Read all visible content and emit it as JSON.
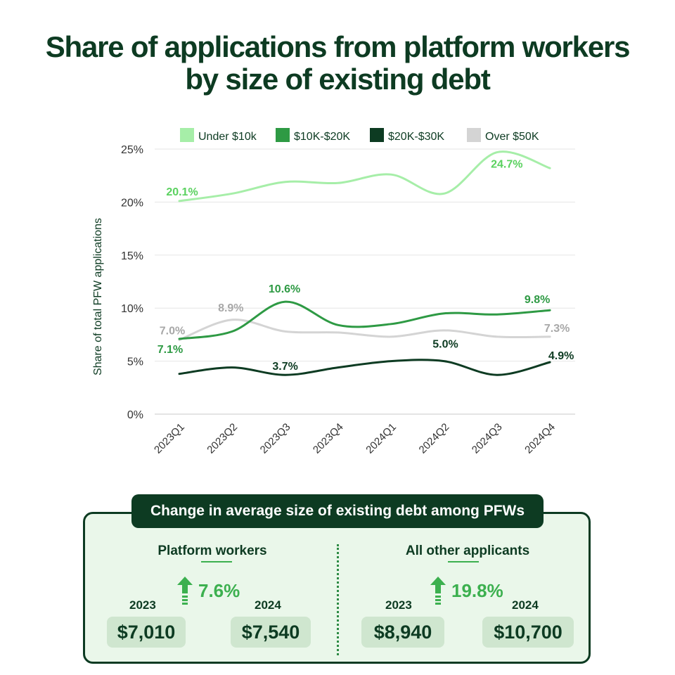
{
  "title_line1": "Share of applications from platform workers",
  "title_line2": "by size of existing debt",
  "chart_data": {
    "type": "line",
    "categories": [
      "2023Q1",
      "2023Q2",
      "2023Q3",
      "2023Q4",
      "2024Q1",
      "2024Q2",
      "2024Q3",
      "2024Q4"
    ],
    "ylabel": "Share of total PFW applications",
    "ylim": [
      0,
      25
    ],
    "yticks": [
      "0%",
      "5%",
      "10%",
      "15%",
      "20%",
      "25%"
    ],
    "grid": true,
    "legend_position": "top",
    "series": [
      {
        "name": "Under $10k",
        "color": "#a6eea8",
        "label_color": "#5ad15f",
        "values": [
          20.1,
          20.8,
          21.9,
          21.8,
          22.6,
          20.8,
          24.7,
          23.2
        ]
      },
      {
        "name": "$10K-$20K",
        "color": "#2e9a44",
        "label_color": "#2e9a44",
        "values": [
          7.1,
          7.8,
          10.6,
          8.4,
          8.5,
          9.5,
          9.4,
          9.8
        ]
      },
      {
        "name": "$20K-$30K",
        "color": "#0d3b22",
        "label_color": "#0d3b22",
        "values": [
          3.8,
          4.4,
          3.7,
          4.4,
          5.0,
          5.0,
          3.7,
          4.9
        ]
      },
      {
        "name": "Over $50K",
        "color": "#d4d4d4",
        "label_color": "#a8a8a8",
        "values": [
          7.0,
          8.9,
          7.8,
          7.7,
          7.3,
          7.9,
          7.3,
          7.3
        ]
      }
    ],
    "data_labels": [
      {
        "series": 0,
        "index": 0,
        "text": "20.1%"
      },
      {
        "series": 0,
        "index": 6,
        "text": "24.7%"
      },
      {
        "series": 1,
        "index": 0,
        "text": "7.1%"
      },
      {
        "series": 1,
        "index": 2,
        "text": "10.6%"
      },
      {
        "series": 1,
        "index": 7,
        "text": "9.8%"
      },
      {
        "series": 2,
        "index": 2,
        "text": "3.7%"
      },
      {
        "series": 2,
        "index": 5,
        "text": "5.0%"
      },
      {
        "series": 2,
        "index": 7,
        "text": "4.9%"
      },
      {
        "series": 3,
        "index": 0,
        "text": "7.0%"
      },
      {
        "series": 3,
        "index": 1,
        "text": "8.9%"
      },
      {
        "series": 3,
        "index": 7,
        "text": "7.3%"
      }
    ]
  },
  "card": {
    "heading": "Change in average size of existing debt among PFWs",
    "left": {
      "title": "Platform workers",
      "year_a": "2023",
      "value_a": "$7,010",
      "year_b": "2024",
      "value_b": "$7,540",
      "change": "7.6%"
    },
    "right": {
      "title": "All other applicants",
      "year_a": "2023",
      "value_a": "$8,940",
      "year_b": "2024",
      "value_b": "$10,700",
      "change": "19.8%"
    },
    "accent_color": "#3cb04f"
  }
}
